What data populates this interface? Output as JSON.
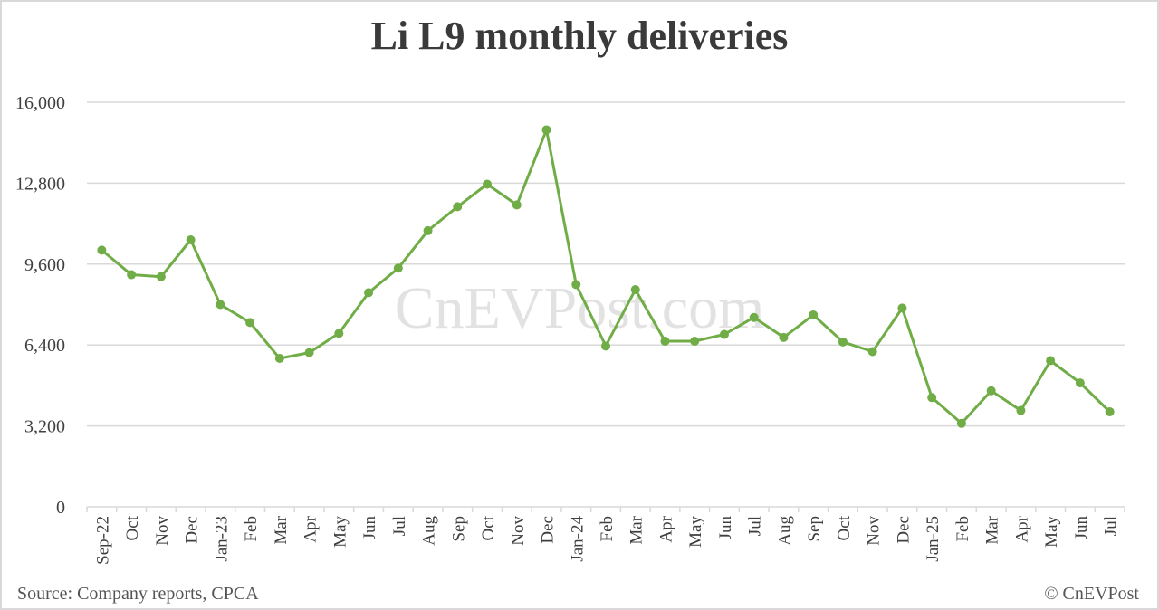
{
  "chart_data": {
    "type": "line",
    "title": "Li L9 monthly deliveries",
    "xlabel": "",
    "ylabel": "",
    "ylim": [
      0,
      16000
    ],
    "yticks": [
      0,
      3200,
      6400,
      9600,
      12800,
      16000
    ],
    "ytick_labels": [
      "0",
      "3,200",
      "6,400",
      "9,600",
      "12,800",
      "16,000"
    ],
    "grid": true,
    "legend": null,
    "categories": [
      "Sep-22",
      "Oct",
      "Nov",
      "Dec",
      "Jan-23",
      "Feb",
      "Mar",
      "Apr",
      "May",
      "Jun",
      "Jul",
      "Aug",
      "Sep",
      "Oct",
      "Nov",
      "Dec",
      "Jan-24",
      "Feb",
      "Mar",
      "Apr",
      "May",
      "Jun",
      "Jul",
      "Aug",
      "Sep",
      "Oct",
      "Nov",
      "Dec",
      "Jan-25",
      "Feb",
      "Mar",
      "Apr",
      "May",
      "Jun",
      "Jul"
    ],
    "series": [
      {
        "name": "Li L9 deliveries",
        "color": "#70ad47",
        "values": [
          10150,
          9180,
          9100,
          10560,
          8000,
          7290,
          5870,
          6100,
          6860,
          8470,
          9440,
          10920,
          11870,
          12760,
          11940,
          14910,
          8790,
          6360,
          8590,
          6550,
          6550,
          6820,
          7490,
          6700,
          7590,
          6520,
          6140,
          7860,
          4320,
          3300,
          4590,
          3810,
          5780,
          4900,
          3760
        ]
      }
    ],
    "watermark": "CnEVPost.com"
  },
  "footer": {
    "source": "Source: Company reports, CPCA",
    "copyright": "© CnEVPost"
  },
  "colors": {
    "line": "#70ad47",
    "grid": "#d9d9d9",
    "text": "#404040",
    "title": "#3a3a3a"
  }
}
